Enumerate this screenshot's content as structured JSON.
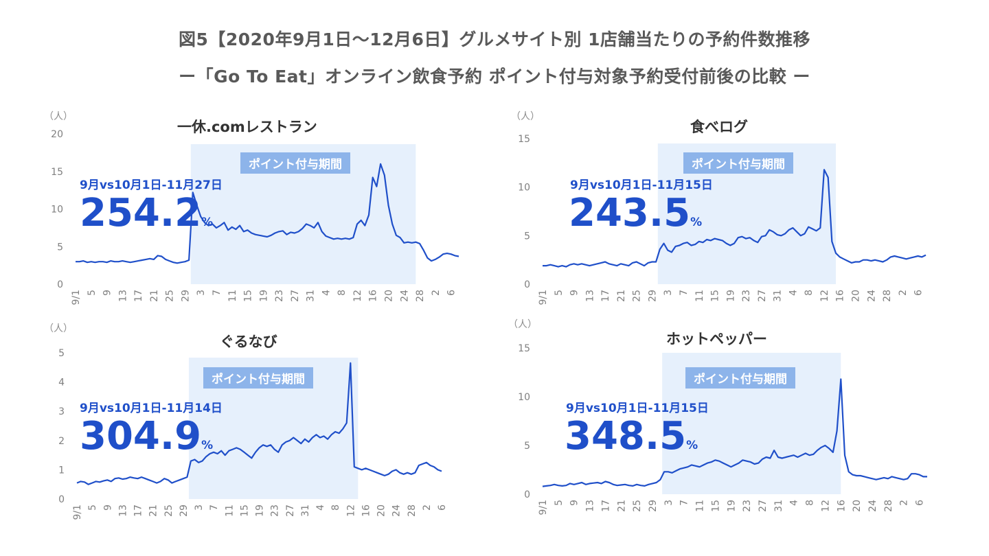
{
  "header": {
    "title": "図5【2020年9月1日〜12月6日】グルメサイト別 1店舗当たりの予約件数推移",
    "subtitle": "ー「Go To Eat」オンライン飲食予約 ポイント付与対象予約受付前後の比較 ー"
  },
  "colors": {
    "line": "#1f4fc9",
    "shade": "#e6f0fc",
    "badge": "#8db4ea",
    "text_accent": "#1f4fc9"
  },
  "chart_data": [
    {
      "type": "line",
      "title": "一休.comレストラン",
      "ylabel": "（人）",
      "ylim": [
        0,
        20
      ],
      "yticks": [
        "0",
        "5",
        "10",
        "15",
        "20"
      ],
      "xticks": [
        "9/1",
        "5",
        "9",
        "13",
        "17",
        "21",
        "25",
        "29",
        "3",
        "7",
        "11",
        "15",
        "19",
        "23",
        "27",
        "31",
        "4",
        "8",
        "12",
        "16",
        "20",
        "24",
        "28",
        "2",
        "6"
      ],
      "shade_label": "ポイント付与期間",
      "shade_range_days": [
        30,
        87
      ],
      "comparison_label": "9月vs10月1日-11月27日",
      "comparison_value": "254.2",
      "comparison_unit": "%",
      "series": [
        {
          "values": [
            3.0,
            3.0,
            3.1,
            2.9,
            3.0,
            2.9,
            3.0,
            3.0,
            2.9,
            3.1,
            3.0,
            3.0,
            3.1,
            3.0,
            2.9,
            3.0,
            3.1,
            3.2,
            3.3,
            3.4,
            3.3,
            3.8,
            3.7,
            3.3,
            3.1,
            2.9,
            2.8,
            2.9,
            3.0,
            3.2,
            12.2,
            10.5,
            9.0,
            8.2,
            7.8,
            8.0,
            7.5,
            7.8,
            8.2,
            7.2,
            7.6,
            7.3,
            7.8,
            7.0,
            7.2,
            6.8,
            6.6,
            6.5,
            6.4,
            6.3,
            6.5,
            6.8,
            7.0,
            7.1,
            6.6,
            6.9,
            6.8,
            7.0,
            7.4,
            8.0,
            7.8,
            7.5,
            8.2,
            7.0,
            6.4,
            6.2,
            6.0,
            6.1,
            6.0,
            6.1,
            6.0,
            6.2,
            8.0,
            8.5,
            7.8,
            9.2,
            14.2,
            13.0,
            16.0,
            14.5,
            10.5,
            8.0,
            6.5,
            6.2,
            5.5,
            5.6,
            5.5,
            5.6,
            5.4,
            4.5,
            3.5,
            3.1,
            3.3,
            3.6,
            4.0,
            4.1,
            4.0,
            3.8,
            3.7
          ]
        }
      ]
    },
    {
      "type": "line",
      "title": "食べログ",
      "ylabel": "（人）",
      "ylim": [
        0,
        15
      ],
      "yticks": [
        "0",
        "5",
        "10",
        "15"
      ],
      "xticks": [
        "9/1",
        "5",
        "9",
        "13",
        "17",
        "21",
        "25",
        "29",
        "3",
        "7",
        "11",
        "15",
        "19",
        "23",
        "27",
        "31",
        "4",
        "8",
        "12",
        "16",
        "20",
        "24",
        "28",
        "2",
        "6"
      ],
      "shade_label": "ポイント付与期間",
      "shade_range_days": [
        30,
        75
      ],
      "comparison_label": "9月vs10月1日-11月15日",
      "comparison_value": "243.5",
      "comparison_unit": "%",
      "series": [
        {
          "values": [
            1.9,
            1.9,
            2.0,
            1.9,
            1.8,
            1.9,
            1.8,
            2.0,
            2.1,
            2.0,
            2.1,
            2.0,
            1.9,
            2.0,
            2.1,
            2.2,
            2.3,
            2.1,
            2.0,
            1.9,
            2.1,
            2.0,
            1.9,
            2.2,
            2.3,
            2.1,
            1.9,
            2.2,
            2.3,
            2.3,
            3.6,
            4.2,
            3.5,
            3.3,
            3.9,
            4.0,
            4.2,
            4.3,
            4.0,
            4.1,
            4.4,
            4.3,
            4.6,
            4.5,
            4.7,
            4.6,
            4.5,
            4.2,
            4.0,
            4.2,
            4.8,
            4.9,
            4.7,
            4.8,
            4.5,
            4.3,
            4.9,
            5.0,
            5.6,
            5.4,
            5.1,
            5.0,
            5.2,
            5.6,
            5.8,
            5.4,
            5.0,
            5.2,
            5.9,
            5.7,
            5.5,
            5.8,
            11.8,
            11.0,
            4.4,
            3.2,
            2.8,
            2.6,
            2.4,
            2.2,
            2.3,
            2.3,
            2.5,
            2.5,
            2.4,
            2.5,
            2.4,
            2.3,
            2.5,
            2.8,
            2.9,
            2.8,
            2.7,
            2.6,
            2.7,
            2.8,
            2.9,
            2.8,
            3.0
          ]
        }
      ]
    },
    {
      "type": "line",
      "title": "ぐるなび",
      "ylabel": "（人）",
      "ylim": [
        0,
        5
      ],
      "yticks": [
        "0",
        "1",
        "2",
        "3",
        "4",
        "5"
      ],
      "xticks": [
        "9/1",
        "5",
        "9",
        "13",
        "17",
        "21",
        "25",
        "29",
        "3",
        "7",
        "11",
        "15",
        "19",
        "23",
        "27",
        "31",
        "4",
        "8",
        "12",
        "16",
        "20",
        "24",
        "28",
        "2",
        "6"
      ],
      "shade_label": "ポイント付与期間",
      "shade_range_days": [
        30,
        74
      ],
      "comparison_label": "9月vs10月1日-11月14日",
      "comparison_value": "304.9",
      "comparison_unit": "%",
      "series": [
        {
          "values": [
            0.55,
            0.6,
            0.58,
            0.5,
            0.55,
            0.6,
            0.58,
            0.62,
            0.65,
            0.6,
            0.7,
            0.72,
            0.68,
            0.7,
            0.75,
            0.72,
            0.7,
            0.75,
            0.7,
            0.65,
            0.6,
            0.55,
            0.6,
            0.7,
            0.65,
            0.55,
            0.6,
            0.65,
            0.7,
            0.75,
            1.3,
            1.35,
            1.25,
            1.3,
            1.45,
            1.55,
            1.6,
            1.55,
            1.65,
            1.5,
            1.65,
            1.7,
            1.75,
            1.7,
            1.6,
            1.5,
            1.4,
            1.6,
            1.75,
            1.85,
            1.8,
            1.85,
            1.7,
            1.6,
            1.85,
            1.95,
            2.0,
            2.1,
            2.0,
            1.9,
            2.05,
            1.95,
            2.1,
            2.2,
            2.1,
            2.15,
            2.05,
            2.2,
            2.3,
            2.25,
            2.4,
            2.6,
            4.65,
            1.1,
            1.05,
            1.0,
            1.05,
            1.0,
            0.95,
            0.9,
            0.85,
            0.8,
            0.85,
            0.95,
            1.0,
            0.9,
            0.85,
            0.9,
            0.85,
            0.9,
            1.15,
            1.2,
            1.25,
            1.15,
            1.1,
            1.0,
            0.95
          ]
        }
      ]
    },
    {
      "type": "line",
      "title": "ホットペッパー",
      "ylabel": "（人）",
      "ylim": [
        0,
        15
      ],
      "yticks": [
        "0",
        "5",
        "10",
        "15"
      ],
      "xticks": [
        "9/1",
        "5",
        "9",
        "13",
        "17",
        "21",
        "25",
        "29",
        "3",
        "7",
        "11",
        "15",
        "19",
        "23",
        "27",
        "31",
        "4",
        "8",
        "12",
        "16",
        "20",
        "24",
        "28",
        "2",
        "6"
      ],
      "shade_label": "ポイント付与期間",
      "shade_range_days": [
        31,
        76
      ],
      "comparison_label": "9月vs10月1日-11月15日",
      "comparison_value": "348.5",
      "comparison_unit": "%",
      "series": [
        {
          "values": [
            0.8,
            0.85,
            0.9,
            1.0,
            0.9,
            0.85,
            0.9,
            1.1,
            1.0,
            1.1,
            1.2,
            1.0,
            1.1,
            1.15,
            1.2,
            1.1,
            1.3,
            1.2,
            1.0,
            0.9,
            0.95,
            1.0,
            0.9,
            0.85,
            1.0,
            0.9,
            0.85,
            1.0,
            1.1,
            1.2,
            1.5,
            2.3,
            2.3,
            2.2,
            2.4,
            2.6,
            2.7,
            2.8,
            3.0,
            2.9,
            2.8,
            3.0,
            3.2,
            3.3,
            3.5,
            3.4,
            3.2,
            3.0,
            2.8,
            3.0,
            3.2,
            3.5,
            3.4,
            3.3,
            3.1,
            3.2,
            3.6,
            3.8,
            3.7,
            4.5,
            3.8,
            3.7,
            3.8,
            3.9,
            4.0,
            3.8,
            4.0,
            4.2,
            4.0,
            4.1,
            4.5,
            4.8,
            5.0,
            4.7,
            4.3,
            6.5,
            11.8,
            4.0,
            2.3,
            2.0,
            1.9,
            1.9,
            1.8,
            1.7,
            1.6,
            1.5,
            1.6,
            1.7,
            1.6,
            1.8,
            1.7,
            1.6,
            1.5,
            1.6,
            2.1,
            2.1,
            2.0,
            1.8,
            1.8
          ]
        }
      ]
    }
  ]
}
